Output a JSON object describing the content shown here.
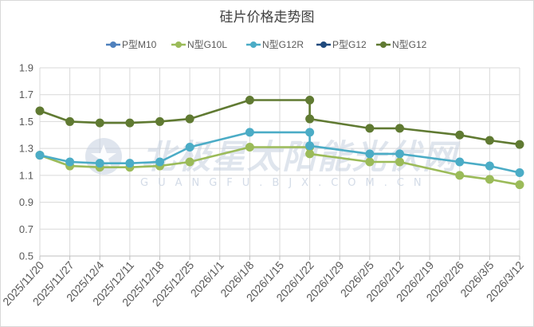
{
  "chart_data": {
    "type": "line",
    "title": "硅片价格走势图",
    "xlabel": "",
    "ylabel": "",
    "ylim": [
      0.5,
      1.9
    ],
    "yticks": [
      0.5,
      0.7,
      0.9,
      1.1,
      1.3,
      1.5,
      1.7,
      1.9
    ],
    "grid": true,
    "legend": "top",
    "categories": [
      "2025/11/20",
      "2025/11/27",
      "2025/12/4",
      "2025/12/11",
      "2025/12/18",
      "2025/12/25",
      "2026/1/1",
      "2026/1/8",
      "2026/1/15",
      "2026/1/22",
      "2026/1/29",
      "2026/2/5",
      "2026/2/12",
      "2026/2/19",
      "2026/2/26",
      "2026/3/5",
      "2026/3/12"
    ],
    "series": [
      {
        "name": "P型M10",
        "color": "#4f81bd",
        "points": [
          {
            "date": "2025/11/20",
            "value": 1.25
          }
        ]
      },
      {
        "name": "N型G10L",
        "color": "#9bbb59",
        "points": [
          {
            "date": "2025/11/20",
            "value": 1.25
          },
          {
            "date": "2025/11/27",
            "value": 1.17
          },
          {
            "date": "2025/12/4",
            "value": 1.16
          },
          {
            "date": "2025/12/11",
            "value": 1.16
          },
          {
            "date": "2025/12/18",
            "value": 1.17
          },
          {
            "date": "2025/12/25",
            "value": 1.2
          },
          {
            "date": "2026/1/8",
            "value": 1.31
          },
          {
            "date": "2026/1/22",
            "value": 1.31
          },
          {
            "date": "2026/1/22",
            "value": 1.26
          },
          {
            "date": "2026/2/5",
            "value": 1.2
          },
          {
            "date": "2026/2/12",
            "value": 1.2
          },
          {
            "date": "2026/2/26",
            "value": 1.1
          },
          {
            "date": "2026/3/5",
            "value": 1.07
          },
          {
            "date": "2026/3/12",
            "value": 1.03
          }
        ]
      },
      {
        "name": "N型G12R",
        "color": "#4bacc6",
        "points": [
          {
            "date": "2025/11/20",
            "value": 1.25
          },
          {
            "date": "2025/11/27",
            "value": 1.2
          },
          {
            "date": "2025/12/4",
            "value": 1.19
          },
          {
            "date": "2025/12/11",
            "value": 1.19
          },
          {
            "date": "2025/12/18",
            "value": 1.2
          },
          {
            "date": "2025/12/25",
            "value": 1.31
          },
          {
            "date": "2026/1/8",
            "value": 1.42
          },
          {
            "date": "2026/1/22",
            "value": 1.42
          },
          {
            "date": "2026/1/22",
            "value": 1.32
          },
          {
            "date": "2026/2/5",
            "value": 1.26
          },
          {
            "date": "2026/2/12",
            "value": 1.26
          },
          {
            "date": "2026/2/26",
            "value": 1.2
          },
          {
            "date": "2026/3/5",
            "value": 1.17
          },
          {
            "date": "2026/3/12",
            "value": 1.12
          }
        ]
      },
      {
        "name": "P型G12",
        "color": "#1f497d",
        "points": []
      },
      {
        "name": "N型G12",
        "color": "#607a32",
        "points": [
          {
            "date": "2025/11/20",
            "value": 1.58
          },
          {
            "date": "2025/11/27",
            "value": 1.5
          },
          {
            "date": "2025/12/4",
            "value": 1.49
          },
          {
            "date": "2025/12/11",
            "value": 1.49
          },
          {
            "date": "2025/12/18",
            "value": 1.5
          },
          {
            "date": "2025/12/25",
            "value": 1.52
          },
          {
            "date": "2026/1/8",
            "value": 1.66
          },
          {
            "date": "2026/1/22",
            "value": 1.66
          },
          {
            "date": "2026/1/22",
            "value": 1.52
          },
          {
            "date": "2026/2/5",
            "value": 1.45
          },
          {
            "date": "2026/2/12",
            "value": 1.45
          },
          {
            "date": "2026/2/26",
            "value": 1.4
          },
          {
            "date": "2026/3/5",
            "value": 1.36
          },
          {
            "date": "2026/3/12",
            "value": 1.33
          }
        ]
      }
    ]
  },
  "watermark": {
    "cn": "北极星太阳能光伏网",
    "en": "GUANGFU.BJX.COM.CN",
    "color": "#c5d0e0"
  }
}
